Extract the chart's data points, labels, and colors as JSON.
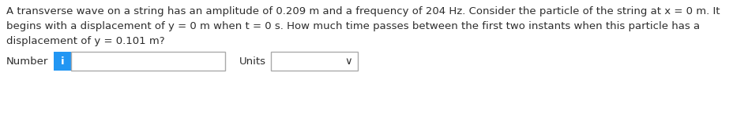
{
  "background_color": "#ffffff",
  "text_lines": [
    "A transverse wave on a string has an amplitude of 0.209 m and a frequency of 204 Hz. Consider the particle of the string at x = 0 m. It",
    "begins with a displacement of y = 0 m when t = 0 s. How much time passes between the first two instants when this particle has a",
    "displacement of y = 0.101 m?"
  ],
  "number_label": "Number",
  "units_label": "Units",
  "info_button_color": "#2196f3",
  "info_button_text": "i",
  "info_button_text_color": "#ffffff",
  "input_box_color": "#ffffff",
  "input_box_border": "#aaaaaa",
  "dropdown_border": "#aaaaaa",
  "text_color": "#2d2d2d",
  "font_size": 9.5,
  "label_font_size": 9.5
}
